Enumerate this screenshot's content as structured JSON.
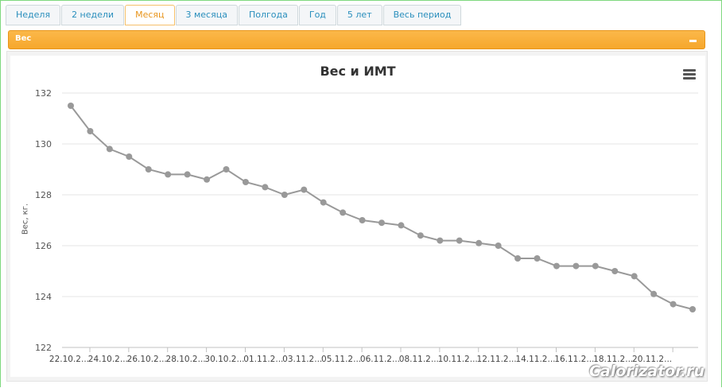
{
  "tabs": [
    {
      "label": "Неделя",
      "active": false
    },
    {
      "label": "2 недели",
      "active": false
    },
    {
      "label": "Месяц",
      "active": true
    },
    {
      "label": "3 месяца",
      "active": false
    },
    {
      "label": "Полгода",
      "active": false
    },
    {
      "label": "Год",
      "active": false
    },
    {
      "label": "5 лет",
      "active": false
    },
    {
      "label": "Весь период",
      "active": false
    }
  ],
  "panel": {
    "title": "Вес"
  },
  "watermark": "Calorizator.ru",
  "colors": {
    "accent": "#f6a72c",
    "tab_active": "#e8941a",
    "tab_text": "#2a8fbd",
    "series": "#999999"
  },
  "chart_data": {
    "type": "line",
    "title": "Вес и ИМТ",
    "ylabel": "Вес, кг.",
    "ylim": [
      122,
      132
    ],
    "yticks": [
      "122",
      "124",
      "126",
      "128",
      "130",
      "132"
    ],
    "grid": true,
    "x_tick_labels": [
      "22.10.2...",
      "24.10.2...",
      "26.10.2...",
      "28.10.2...",
      "30.10.2...",
      "01.11.2...",
      "03.11.2...",
      "05.11.2...",
      "06.11.2...",
      "08.11.2...",
      "10.11.2...",
      "12.11.2...",
      "14.11.2...",
      "16.11.2...",
      "18.11.2...",
      "20.11.2..."
    ],
    "series": [
      {
        "values": [
          131.5,
          130.5,
          129.8,
          129.5,
          129.0,
          128.8,
          128.8,
          128.6,
          129.0,
          128.5,
          128.3,
          128.0,
          128.2,
          127.7,
          127.3,
          127.0,
          126.9,
          126.8,
          126.4,
          126.2,
          126.2,
          126.1,
          126.0,
          125.5,
          125.5,
          125.2,
          125.2,
          125.2,
          125.0,
          124.8,
          124.1,
          123.7,
          123.5
        ]
      }
    ]
  }
}
